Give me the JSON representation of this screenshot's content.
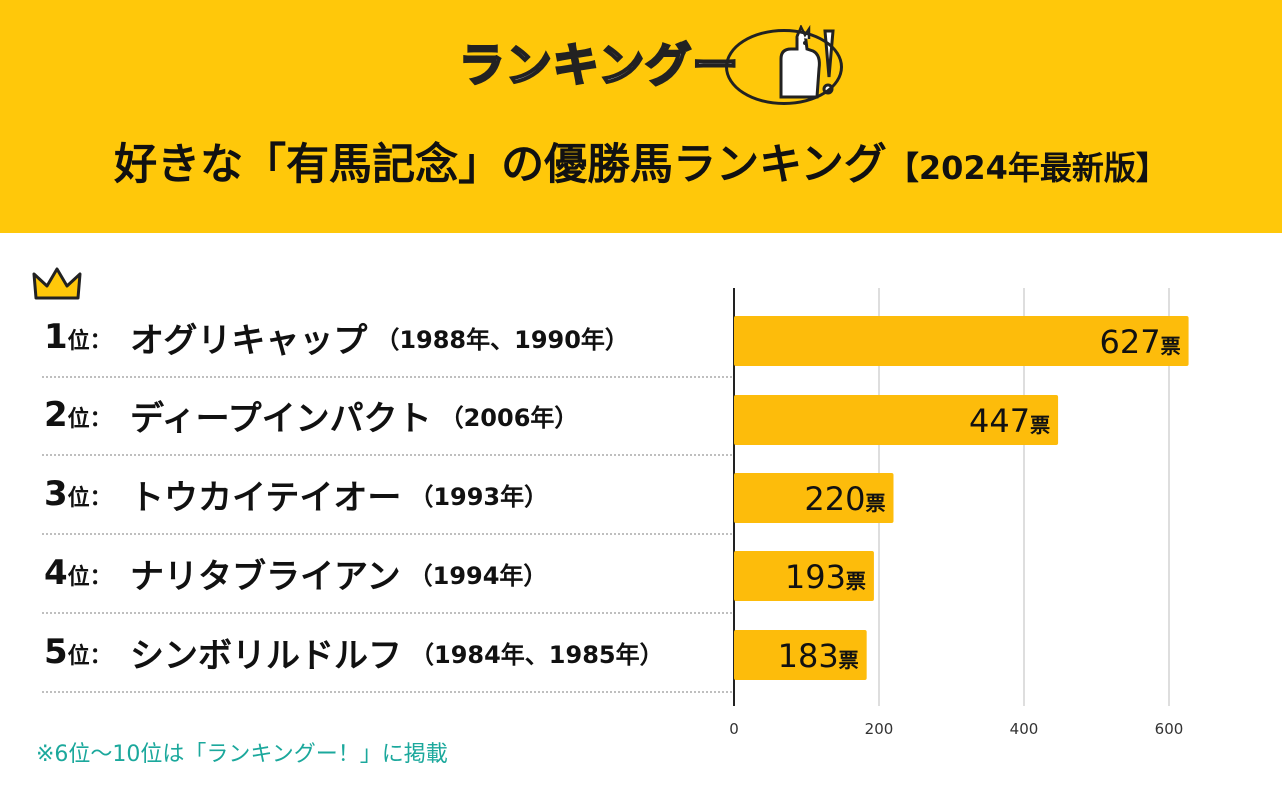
{
  "header": {
    "logo_text": "ランキングー",
    "title": "好きな「有馬記念」の優勝馬ランキング",
    "subtitle": "【2024年最新版】"
  },
  "colors": {
    "header_bg": "#FFC80A",
    "bar": "#FDBC0B",
    "note": "#1BA89C",
    "crown": "#FFC80A"
  },
  "ranking": [
    {
      "rank": "1",
      "unit": "位：",
      "name": "オグリキャップ",
      "years": "（1988年、1990年）"
    },
    {
      "rank": "2",
      "unit": "位：",
      "name": "ディープインパクト",
      "years": "（2006年）"
    },
    {
      "rank": "3",
      "unit": "位：",
      "name": "トウカイテイオー",
      "years": "（1993年）"
    },
    {
      "rank": "4",
      "unit": "位：",
      "name": "ナリタブライアン",
      "years": "（1994年）"
    },
    {
      "rank": "5",
      "unit": "位：",
      "name": "シンボリルドルフ",
      "years": "（1984年、1985年）"
    }
  ],
  "chart_data": {
    "type": "bar",
    "orientation": "horizontal",
    "categories": [
      "オグリキャップ",
      "ディープインパクト",
      "トウカイテイオー",
      "ナリタブライアン",
      "シンボリルドルフ"
    ],
    "values": [
      627,
      447,
      220,
      193,
      183
    ],
    "value_unit": "票",
    "xlim": [
      0,
      660
    ],
    "xticks": [
      0,
      200,
      400,
      600
    ],
    "grid": true
  },
  "footer": {
    "note": "※6位～10位は「ランキングー！」に掲載"
  }
}
